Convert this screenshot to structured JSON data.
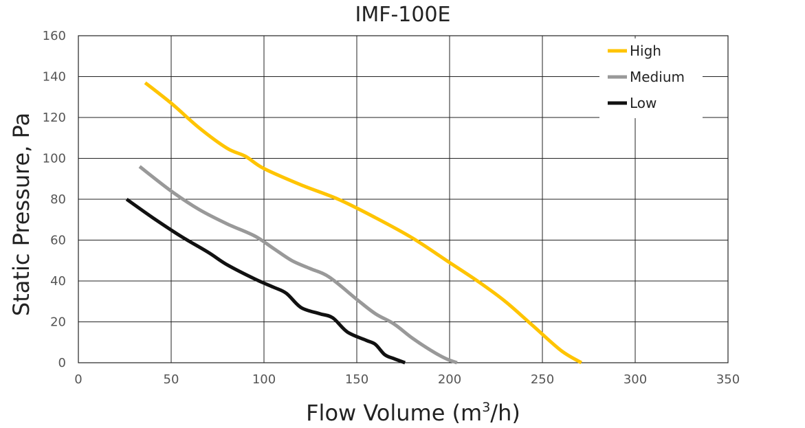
{
  "chart_data": {
    "type": "line",
    "title": "IMF-100E",
    "xlabel_prefix": "Flow Volume (m",
    "xlabel_sup": "3",
    "xlabel_suffix": "/h)",
    "ylabel": "Static Pressure, Pa",
    "xlim": [
      0,
      350
    ],
    "ylim": [
      0,
      160
    ],
    "xticks": [
      "0",
      "50",
      "100",
      "150",
      "200",
      "250",
      "300",
      "350"
    ],
    "yticks": [
      "0",
      "20",
      "40",
      "60",
      "80",
      "100",
      "120",
      "140",
      "160"
    ],
    "xtick_values": [
      0,
      50,
      100,
      150,
      200,
      250,
      300,
      350
    ],
    "ytick_values": [
      0,
      20,
      40,
      60,
      80,
      100,
      120,
      140,
      160
    ],
    "grid": true,
    "legend_position": "top-right",
    "series": [
      {
        "name": "High",
        "color": "#FFC400",
        "points": [
          [
            36,
            137
          ],
          [
            50,
            127
          ],
          [
            65,
            115
          ],
          [
            80,
            105
          ],
          [
            90,
            101
          ],
          [
            100,
            95
          ],
          [
            120,
            87
          ],
          [
            140,
            80
          ],
          [
            160,
            71
          ],
          [
            180,
            61
          ],
          [
            200,
            49
          ],
          [
            215,
            40
          ],
          [
            230,
            30
          ],
          [
            245,
            18
          ],
          [
            260,
            6
          ],
          [
            271,
            0
          ]
        ]
      },
      {
        "name": "Medium",
        "color": "#999999",
        "points": [
          [
            33,
            96
          ],
          [
            50,
            84
          ],
          [
            65,
            75
          ],
          [
            80,
            68
          ],
          [
            95,
            62
          ],
          [
            105,
            56
          ],
          [
            115,
            50
          ],
          [
            125,
            46
          ],
          [
            135,
            42
          ],
          [
            150,
            31
          ],
          [
            160,
            24
          ],
          [
            170,
            19
          ],
          [
            180,
            12
          ],
          [
            190,
            6
          ],
          [
            198,
            2
          ],
          [
            204,
            0
          ]
        ]
      },
      {
        "name": "Low",
        "color": "#111111",
        "points": [
          [
            26,
            80
          ],
          [
            40,
            71
          ],
          [
            55,
            62
          ],
          [
            70,
            54
          ],
          [
            80,
            48
          ],
          [
            95,
            41
          ],
          [
            105,
            37
          ],
          [
            112,
            34
          ],
          [
            120,
            27
          ],
          [
            130,
            24
          ],
          [
            137,
            22
          ],
          [
            145,
            15
          ],
          [
            155,
            11
          ],
          [
            160,
            9
          ],
          [
            165,
            4
          ],
          [
            170,
            2
          ],
          [
            176,
            0
          ]
        ]
      }
    ]
  }
}
